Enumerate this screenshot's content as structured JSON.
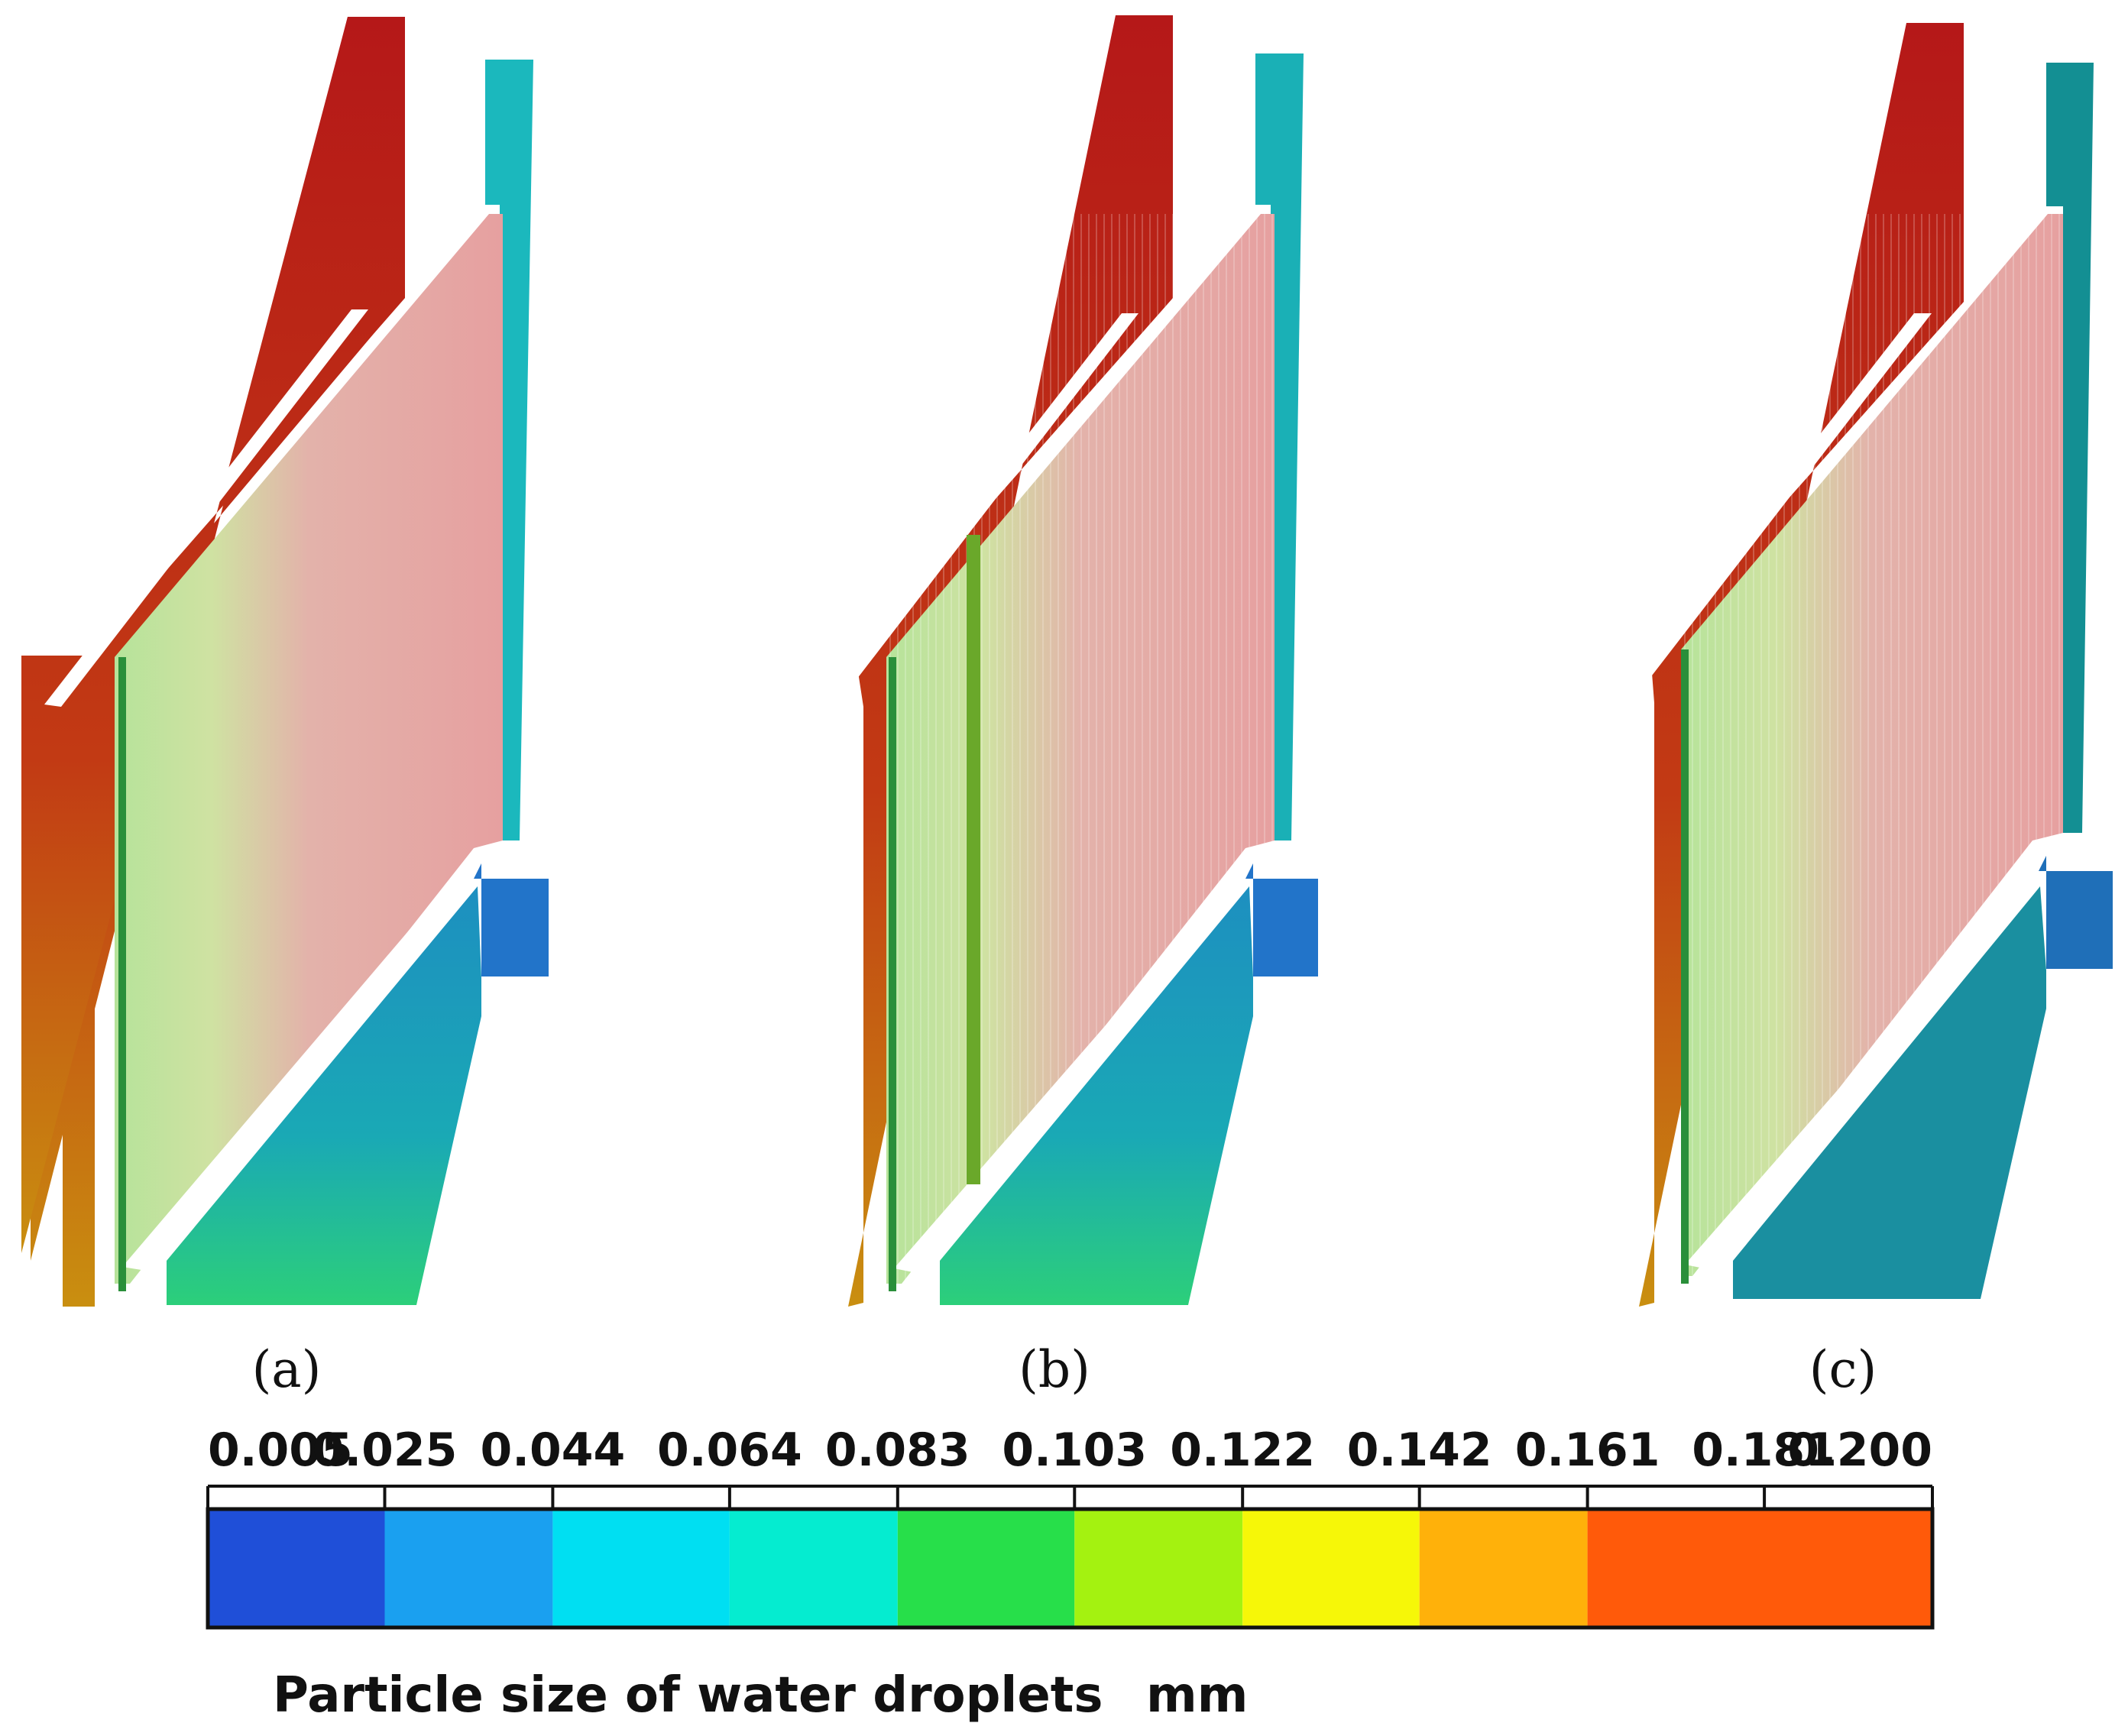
{
  "panels": [
    {
      "id": "a",
      "label": "(a)"
    },
    {
      "id": "b",
      "label": "(b)"
    },
    {
      "id": "c",
      "label": "(c)"
    }
  ],
  "colorbar": {
    "ticks": [
      "0.005",
      "0.025",
      "0.044",
      "0.064",
      "0.083",
      "0.103",
      "0.122",
      "0.142",
      "0.161",
      "0.181",
      "0.200"
    ],
    "bands": [
      "#1f4fd8",
      "#1aa0f0",
      "#00dff2",
      "#05ecd0",
      "#27df4a",
      "#a4f210",
      "#f6f708",
      "#ffb10a",
      "#ff5a0a"
    ],
    "title": "Particle size of water droplets",
    "unit": "mm"
  },
  "colors": {
    "inlet": "#b21a1a",
    "outlet_top": "#1bb8bd",
    "outlet_bottom": "#2274c9",
    "hopper": "#1aa3b0",
    "plates": "#d9a3a3"
  }
}
